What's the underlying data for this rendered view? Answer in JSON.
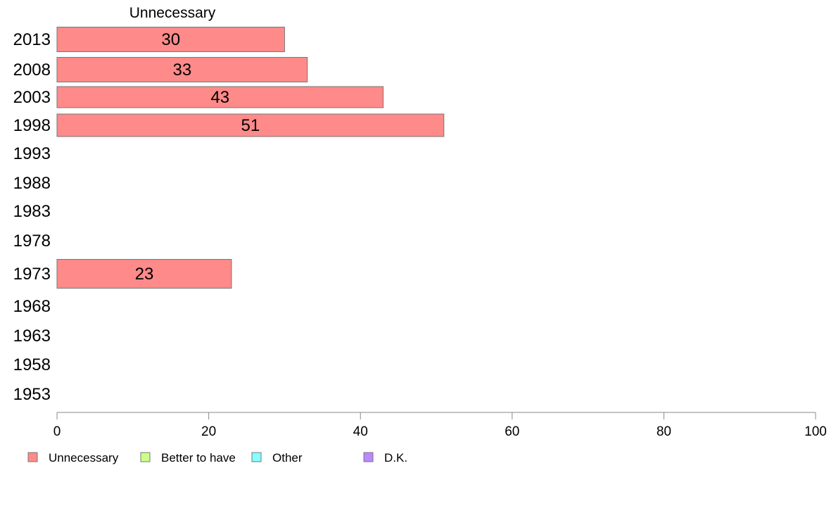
{
  "chart_data": {
    "type": "bar",
    "orientation": "horizontal",
    "title": "",
    "series_title": "Unnecessary",
    "categories": [
      "2013",
      "2008",
      "2003",
      "1998",
      "1993",
      "1988",
      "1983",
      "1978",
      "1973",
      "1968",
      "1963",
      "1958",
      "1953"
    ],
    "series": [
      {
        "name": "Unnecessary",
        "color": "#ff8a8a",
        "values": [
          30,
          33,
          43,
          51,
          null,
          null,
          null,
          null,
          23,
          null,
          null,
          null,
          null
        ],
        "labels": [
          "30",
          "33",
          "43",
          "51",
          "",
          "",
          "",
          "",
          "23",
          "",
          "",
          "",
          ""
        ]
      }
    ],
    "xlim": [
      0,
      100
    ],
    "x_ticks": [
      0,
      20,
      40,
      60,
      80,
      100
    ],
    "x_tick_labels": [
      "0",
      "20",
      "40",
      "60",
      "80",
      "100"
    ],
    "grid": false,
    "legend_position": "bottom-left",
    "legend": [
      {
        "label": "Unnecessary",
        "color": "#ff8a8a"
      },
      {
        "label": "Better to have",
        "color": "#ccff88"
      },
      {
        "label": "Other",
        "color": "#88ffff"
      },
      {
        "label": "D.K.",
        "color": "#bb88ff"
      }
    ]
  }
}
